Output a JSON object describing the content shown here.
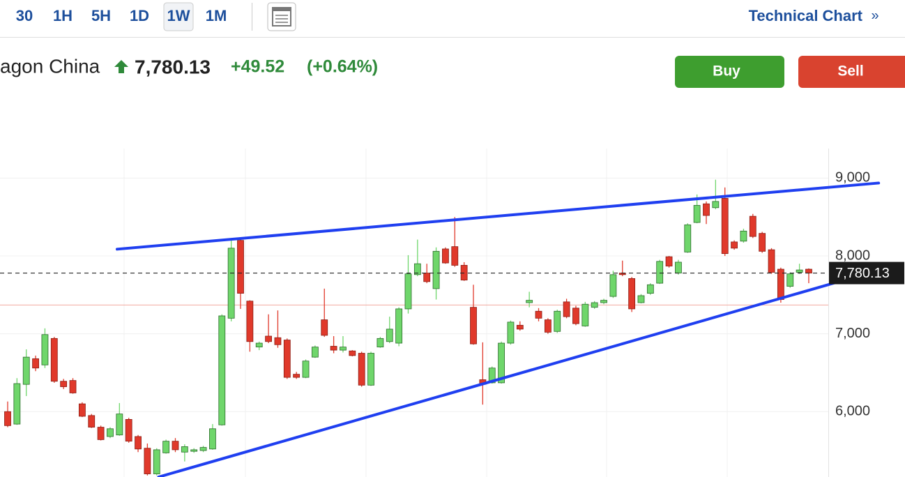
{
  "toolbar": {
    "timeframes": [
      "30",
      "1H",
      "5H",
      "1D",
      "1W",
      "1M"
    ],
    "selected": 4,
    "link": "Technical Chart",
    "link_icon": "»"
  },
  "quote": {
    "name": "agon China",
    "price": "7,780.13",
    "change": "+49.52",
    "change_pct": "(+0.64%)"
  },
  "actions": [
    "Buy",
    "Sell"
  ],
  "chart_data": {
    "type": "candlestick",
    "ylim": [
      5160,
      9380
    ],
    "yticks": [
      {
        "value": 6000,
        "label": "6,000"
      },
      {
        "value": 7000,
        "label": "7,000"
      },
      {
        "value": 8000,
        "label": "8,000"
      },
      {
        "value": 9000,
        "label": "9,000"
      }
    ],
    "grid": true,
    "up_color": "#6fd66b",
    "down_color": "#e0392b",
    "open": [
      6000,
      5840,
      6350,
      6680,
      6600,
      6940,
      6390,
      6400,
      6100,
      5950,
      5800,
      5680,
      5700,
      5900,
      5680,
      5530,
      5200,
      5470,
      5620,
      5480,
      5490,
      5500,
      5520,
      5830,
      7200,
      8200,
      7420,
      6830,
      6970,
      6950,
      6920,
      6480,
      6440,
      6700,
      7180,
      6840,
      6790,
      6780,
      6750,
      6340,
      6830,
      6900,
      6880,
      7320,
      7760,
      7780,
      7580,
      8090,
      8120,
      7880,
      7340,
      6410,
      6370,
      6370,
      6880,
      7110,
      7400,
      7290,
      7180,
      7030,
      7410,
      7330,
      7100,
      7340,
      7400,
      7480,
      7780,
      7710,
      7400,
      7520,
      7650,
      7990,
      7780,
      8050,
      8430,
      8670,
      8620,
      8740,
      8180,
      8190,
      8510,
      8290,
      8080,
      7830,
      7610,
      7790,
      7830
    ],
    "high": [
      6130,
      6430,
      6800,
      6720,
      7070,
      6960,
      6420,
      6430,
      6120,
      5970,
      5820,
      5800,
      6110,
      5920,
      5700,
      5590,
      5530,
      5640,
      5660,
      5580,
      5530,
      5560,
      5840,
      7250,
      8220,
      8230,
      7430,
      6900,
      7250,
      7300,
      6940,
      6510,
      6670,
      6850,
      7580,
      6970,
      6970,
      6790,
      6770,
      6770,
      6960,
      7220,
      7340,
      8010,
      8210,
      7900,
      8110,
      8110,
      8500,
      7920,
      7630,
      6890,
      6580,
      6900,
      7170,
      7160,
      7540,
      7330,
      7200,
      7310,
      7450,
      7360,
      7410,
      7420,
      7450,
      7810,
      7940,
      7730,
      7510,
      7650,
      7950,
      8000,
      7950,
      8420,
      8790,
      8700,
      8980,
      8880,
      8200,
      8350,
      8540,
      8310,
      8100,
      7850,
      7790,
      7900,
      7840
    ],
    "low": [
      5800,
      5830,
      6200,
      6520,
      6560,
      6370,
      6290,
      6230,
      5930,
      5790,
      5630,
      5660,
      5690,
      5600,
      5480,
      5180,
      5180,
      5460,
      5480,
      5360,
      5470,
      5480,
      5510,
      5820,
      7160,
      7320,
      6770,
      6790,
      6880,
      6820,
      6420,
      6420,
      6430,
      6690,
      6960,
      6750,
      6760,
      6710,
      6320,
      6330,
      6820,
      6880,
      6840,
      7260,
      7740,
      7650,
      7440,
      7900,
      7860,
      7680,
      6860,
      6090,
      6360,
      6360,
      6860,
      7040,
      7340,
      7160,
      7000,
      7010,
      7200,
      7110,
      7090,
      7320,
      7380,
      7460,
      7740,
      7280,
      7390,
      7500,
      7640,
      7850,
      7760,
      8040,
      8420,
      8410,
      8600,
      8000,
      8080,
      8170,
      8230,
      8040,
      7770,
      7400,
      7590,
      7770,
      7650
    ],
    "close": [
      5820,
      6360,
      6700,
      6560,
      6990,
      6390,
      6320,
      6240,
      5940,
      5800,
      5640,
      5780,
      5970,
      5620,
      5520,
      5200,
      5510,
      5620,
      5510,
      5550,
      5510,
      5540,
      5780,
      7230,
      8100,
      7520,
      6900,
      6880,
      6900,
      6860,
      6440,
      6440,
      6650,
      6830,
      6980,
      6790,
      6830,
      6720,
      6340,
      6750,
      6940,
      7060,
      7320,
      7770,
      7900,
      7670,
      8060,
      7910,
      7880,
      7690,
      6870,
      6350,
      6560,
      6880,
      7150,
      7060,
      7430,
      7200,
      7020,
      7290,
      7220,
      7130,
      7380,
      7400,
      7430,
      7760,
      7760,
      7320,
      7490,
      7630,
      7930,
      7870,
      7920,
      8400,
      8650,
      8520,
      8700,
      8030,
      8100,
      8320,
      8250,
      8060,
      7790,
      7440,
      7770,
      7820,
      7780
    ],
    "last_price": {
      "value": 7780.13,
      "label": "7,780.13"
    },
    "reference_line": {
      "value": 7370,
      "color": "#f2a99f"
    },
    "trendlines": [
      {
        "color": "#1f3ff0",
        "start": [
          11.75,
          8087
        ],
        "end": [
          93.5,
          8937
        ]
      },
      {
        "color": "#1f3ff0",
        "start": [
          16.2,
          5160
        ],
        "end": [
          92.0,
          7765
        ]
      }
    ]
  }
}
